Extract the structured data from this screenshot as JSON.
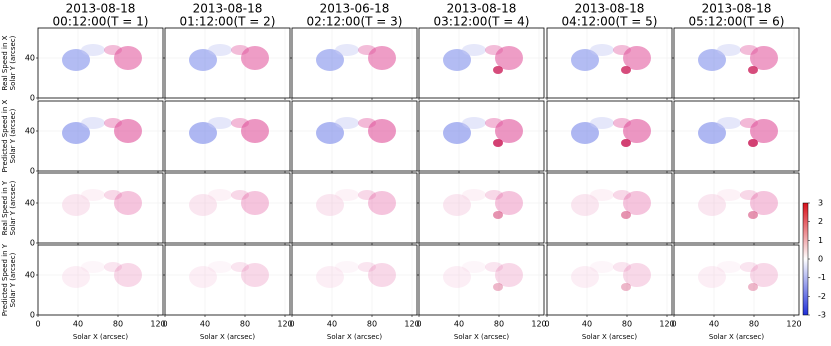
{
  "columns": [
    {
      "date": "2013-08-18",
      "time": "00:12:00(T = 1)"
    },
    {
      "date": "2013-08-18",
      "time": "01:12:00(T = 2)"
    },
    {
      "date": "2013-06-18",
      "time": "02:12:00(T = 3)"
    },
    {
      "date": "2013-08-18",
      "time": "03:12:00(T = 4)"
    },
    {
      "date": "2013-08-18",
      "time": "04:12:00(T = 5)"
    },
    {
      "date": "2013-08-18",
      "time": "05:12:00(T = 6)"
    }
  ],
  "rows": [
    {
      "label": "Real Speed in X"
    },
    {
      "label": "Predicted Speed in X"
    },
    {
      "label": "Real Speed in Y"
    },
    {
      "label": "Predicted Speed in Y"
    }
  ],
  "x_axis": {
    "label": "Solar X (arcsec)",
    "lim": [
      0,
      125
    ],
    "ticks": [
      0,
      40,
      80,
      120
    ]
  },
  "y_axis": {
    "label": "Solar Y (arcsec)",
    "lim": [
      0,
      70
    ],
    "ticks": [
      0,
      40
    ]
  },
  "colorbar": {
    "lim": [
      -3,
      3
    ],
    "ticks": [
      -3,
      -2,
      -1,
      0,
      1,
      2,
      3
    ],
    "colors": [
      "#1f2fd8",
      "#ffffff",
      "#d8101a"
    ]
  }
}
